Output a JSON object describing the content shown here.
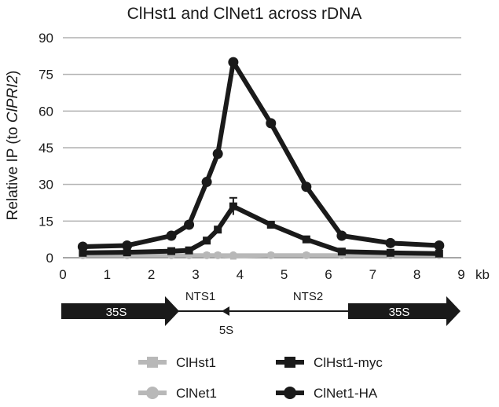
{
  "chart_data": {
    "type": "line",
    "title": "ClHst1 and ClNet1 across rDNA",
    "xlabel": "kb",
    "ylabel_prefix": "Relative IP (to ",
    "ylabel_italic": "ClPRI2",
    "ylabel_suffix": ")",
    "xlim": [
      0,
      9
    ],
    "ylim": [
      0,
      90
    ],
    "xticks": [
      "0",
      "1",
      "2",
      "3",
      "4",
      "5",
      "6",
      "7",
      "8",
      "9"
    ],
    "yticks": [
      "0",
      "15",
      "30",
      "45",
      "60",
      "75",
      "90"
    ],
    "grid": "horizontal",
    "legend_placement": "bottom",
    "series": [
      {
        "name": "ClHst1",
        "color": "#b8b8b8",
        "marker": "square",
        "x": [
          0.45,
          1.45,
          2.45,
          2.85,
          3.25,
          3.5,
          3.85,
          4.7,
          5.5,
          6.3,
          7.4,
          8.5
        ],
        "y": [
          1,
          1,
          1,
          1,
          1,
          1,
          0.5,
          1,
          1,
          1,
          1,
          1
        ]
      },
      {
        "name": "ClHst1-myc",
        "color": "#1a1a1a",
        "marker": "square",
        "x": [
          0.45,
          1.45,
          2.45,
          2.85,
          3.25,
          3.5,
          3.85,
          4.7,
          5.5,
          6.3,
          7.4,
          8.5
        ],
        "y": [
          2,
          2.2,
          2.7,
          3,
          7,
          11.5,
          21,
          13.5,
          7.5,
          2.5,
          2,
          1.7
        ],
        "error": [
          0,
          0,
          0,
          0,
          0,
          0,
          3.5,
          0,
          0,
          0,
          0,
          0
        ]
      },
      {
        "name": "ClNet1",
        "color": "#b8b8b8",
        "marker": "circle",
        "x": [
          0.45,
          1.45,
          2.45,
          2.85,
          3.25,
          3.5,
          3.85,
          4.7,
          5.5,
          6.3,
          7.4,
          8.5
        ],
        "y": [
          1,
          1,
          1,
          1,
          1,
          1,
          1,
          1,
          1,
          1,
          1,
          1
        ]
      },
      {
        "name": "ClNet1-HA",
        "color": "#1a1a1a",
        "marker": "circle",
        "x": [
          0.45,
          1.45,
          2.45,
          2.85,
          3.25,
          3.5,
          3.85,
          4.7,
          5.5,
          6.3,
          7.4,
          8.5
        ],
        "y": [
          4.5,
          5,
          9,
          13.5,
          31,
          42.5,
          80,
          55,
          29,
          9,
          6,
          5
        ]
      }
    ],
    "rdna_map": {
      "labels": {
        "left_35s": "35S",
        "nts1": "NTS1",
        "nts2": "NTS2",
        "five_s": "5S",
        "right_35s": "35S"
      },
      "regions_kb": {
        "left_35s": [
          0,
          2.95
        ],
        "spacer": [
          2.95,
          7.25
        ],
        "five_s": 3.85,
        "right_35s": [
          7.25,
          9.7
        ]
      }
    }
  }
}
